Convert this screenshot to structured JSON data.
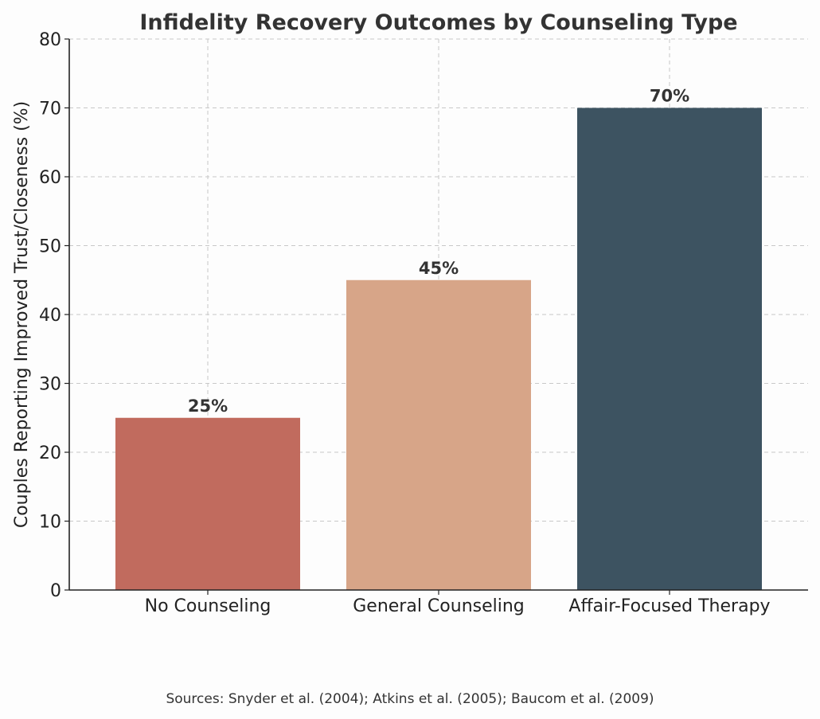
{
  "chart_data": {
    "type": "bar",
    "title": "Infidelity Recovery Outcomes by Counseling Type",
    "xlabel": "",
    "ylabel": "Couples Reporting Improved Trust/Closeness (%)",
    "categories": [
      "No Counseling",
      "General Counseling",
      "Affair-Focused Therapy"
    ],
    "values": [
      25,
      45,
      70
    ],
    "data_labels": [
      "25%",
      "45%",
      "70%"
    ],
    "colors": [
      "#c16b5e",
      "#d7a588",
      "#3d5361"
    ],
    "ylim": [
      0,
      80
    ],
    "yticks": [
      "0",
      "10",
      "20",
      "30",
      "40",
      "50",
      "60",
      "70",
      "80"
    ],
    "grid": true
  },
  "source": "Sources: Snyder et al. (2004); Atkins et al. (2005); Baucom et al. (2009)"
}
